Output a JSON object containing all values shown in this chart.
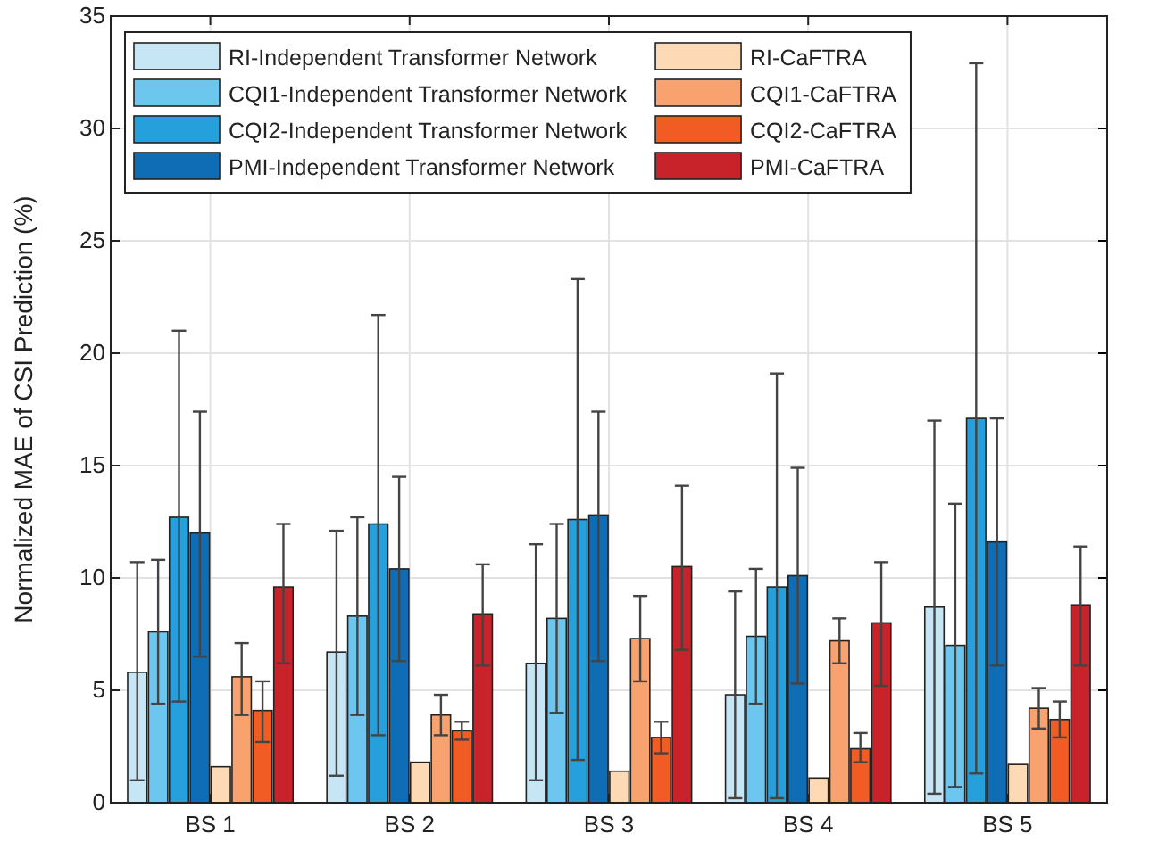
{
  "chart_data": {
    "type": "bar",
    "ylabel": "Normalized MAE of CSI Prediction (%)",
    "categories": [
      "BS 1",
      "BS 2",
      "BS 3",
      "BS 4",
      "BS 5"
    ],
    "ylim": [
      0,
      35
    ],
    "yticks": [
      0,
      5,
      10,
      15,
      20,
      25,
      30,
      35
    ],
    "grid": true,
    "legend": "top left",
    "series": [
      {
        "name": "RI-Independent Transformer Network",
        "color": "#c6e6f5",
        "values": [
          5.8,
          6.7,
          6.2,
          4.8,
          8.7
        ],
        "errors": [
          [
            1.0,
            10.7
          ],
          [
            1.2,
            12.1
          ],
          [
            1.0,
            11.5
          ],
          [
            0.2,
            9.4
          ],
          [
            0.4,
            17.0
          ]
        ]
      },
      {
        "name": "CQI1-Independent Transformer Network",
        "color": "#6cc6ee",
        "values": [
          7.6,
          8.3,
          8.2,
          7.4,
          7.0
        ],
        "errors": [
          [
            4.4,
            10.8
          ],
          [
            3.9,
            12.7
          ],
          [
            4.0,
            12.4
          ],
          [
            4.4,
            10.4
          ],
          [
            0.7,
            13.3
          ]
        ]
      },
      {
        "name": "CQI2-Independent Transformer Network",
        "color": "#25a0dc",
        "values": [
          12.7,
          12.4,
          12.6,
          9.6,
          17.1
        ],
        "errors": [
          [
            4.5,
            21.0
          ],
          [
            3.0,
            21.7
          ],
          [
            1.9,
            23.3
          ],
          [
            0.2,
            19.1
          ],
          [
            1.3,
            32.9
          ]
        ]
      },
      {
        "name": "PMI-Independent Transformer Network",
        "color": "#0f6db5",
        "values": [
          12.0,
          10.4,
          12.8,
          10.1,
          11.6
        ],
        "errors": [
          [
            6.5,
            17.4
          ],
          [
            6.3,
            14.5
          ],
          [
            6.3,
            17.4
          ],
          [
            5.3,
            14.9
          ],
          [
            6.1,
            17.1
          ]
        ]
      },
      {
        "name": "RI-CaFTRA",
        "color": "#fdd9b5",
        "values": [
          1.6,
          1.8,
          1.4,
          1.1,
          1.7
        ]
      },
      {
        "name": "CQI1-CaFTRA",
        "color": "#f7a26f",
        "values": [
          5.6,
          3.9,
          7.3,
          7.2,
          4.2
        ],
        "errors": [
          [
            3.9,
            7.1
          ],
          [
            3.0,
            4.8
          ],
          [
            5.4,
            9.2
          ],
          [
            6.2,
            8.2
          ],
          [
            3.3,
            5.1
          ]
        ]
      },
      {
        "name": "CQI2-CaFTRA",
        "color": "#f05c24",
        "values": [
          4.1,
          3.2,
          2.9,
          2.4,
          3.7
        ],
        "errors": [
          [
            2.7,
            5.4
          ],
          [
            2.8,
            3.6
          ],
          [
            2.2,
            3.6
          ],
          [
            1.8,
            3.1
          ],
          [
            2.9,
            4.5
          ]
        ]
      },
      {
        "name": "PMI-CaFTRA",
        "color": "#c8222a",
        "values": [
          9.6,
          8.4,
          10.5,
          8.0,
          8.8
        ],
        "errors": [
          [
            6.2,
            12.4
          ],
          [
            6.1,
            10.6
          ],
          [
            6.8,
            14.1
          ],
          [
            5.2,
            10.7
          ],
          [
            6.1,
            11.4
          ]
        ]
      }
    ]
  }
}
